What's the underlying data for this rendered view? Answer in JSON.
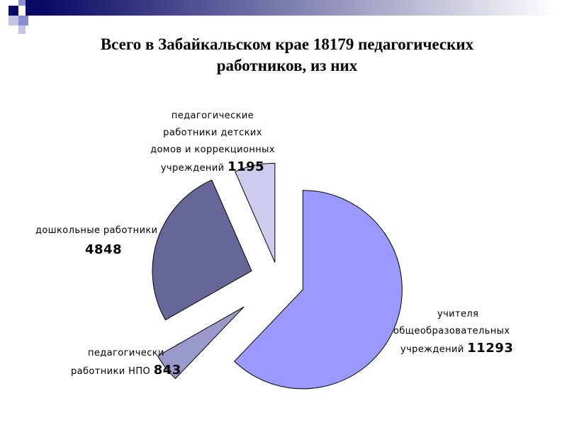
{
  "slide": {
    "title_line1": "Всего в Забайкальском крае 18179 педагогических",
    "title_line2": "работников, из них"
  },
  "colors": {
    "banner_dark": "#0a0a66",
    "banner_light": "#ffffff",
    "banner_squares": [
      "#0a0a66",
      "#8c8cd0",
      "#c4c4e6"
    ]
  },
  "chart_data": {
    "type": "pie",
    "title": "Всего в Забайкальском крае 18179 педагогических работников, из них",
    "total": 18179,
    "exploded": true,
    "slices": [
      {
        "label_lines": [
          "учителя",
          "общеобразовательных",
          "учреждений"
        ],
        "value": 11293,
        "value_text": "11293",
        "color": "#9999ff"
      },
      {
        "label_lines": [
          "педагогически",
          "работники НПО"
        ],
        "value": 843,
        "value_text": "843",
        "color": "#9999cc"
      },
      {
        "label_lines": [
          "дошкольные работники"
        ],
        "value": 4848,
        "value_text": "4848",
        "color": "#666699"
      },
      {
        "label_lines": [
          "педагогические",
          "работники детских",
          "домов и коррекционных",
          "учреждений"
        ],
        "value": 1195,
        "value_text": "1195",
        "color": "#ccccee"
      }
    ]
  }
}
